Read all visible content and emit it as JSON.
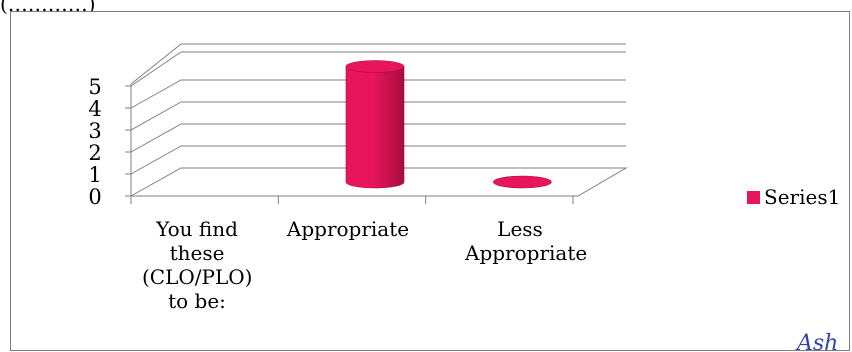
{
  "header_fragment": "(…………)",
  "colors": {
    "series": "#e8155c",
    "series_dark": "#a80d3f",
    "grid": "#7f7f7f"
  },
  "chart_data": {
    "type": "bar",
    "style": "3d-cylinder",
    "categories": [
      "You find these (CLO/PLO) to be:",
      "Appropriate",
      "Less Appropriate"
    ],
    "series": [
      {
        "name": "Series1",
        "values": [
          0,
          5,
          0
        ]
      }
    ],
    "ylim": [
      0,
      5
    ],
    "yticks": [
      0,
      1,
      2,
      3,
      4,
      5
    ],
    "grid": true,
    "legend": "right"
  },
  "watermark_signature": "Ash"
}
